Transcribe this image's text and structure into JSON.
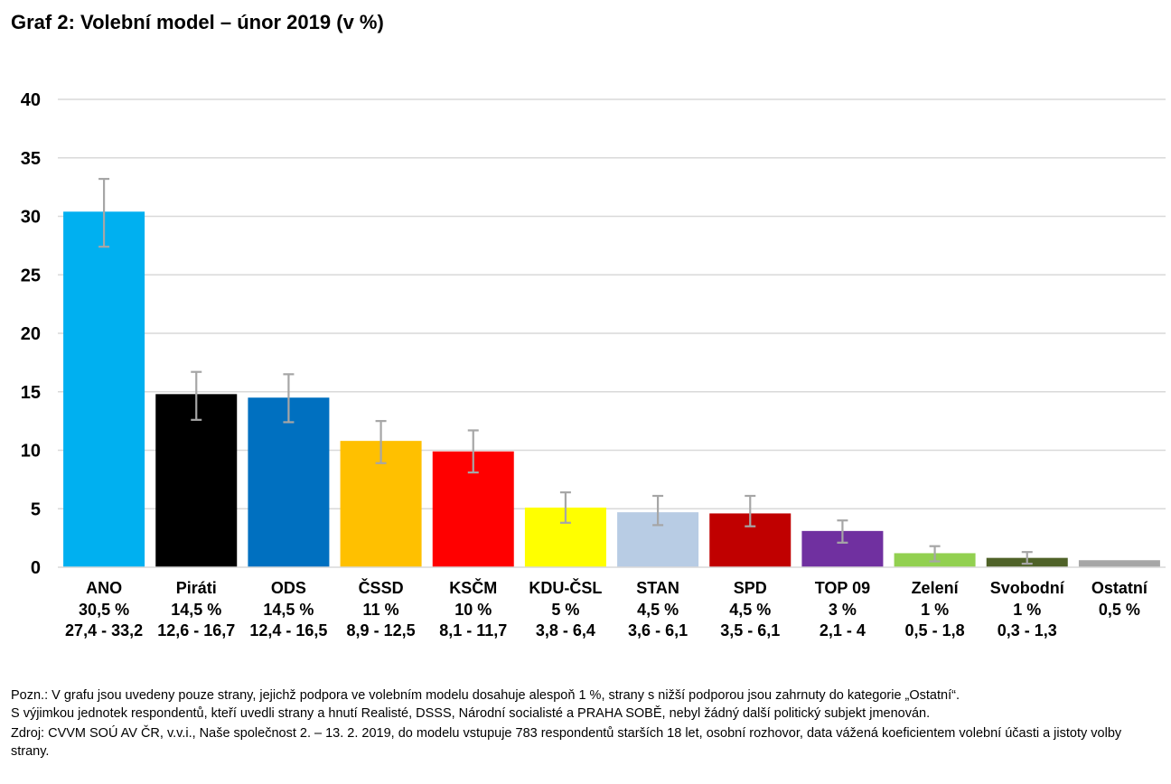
{
  "title": "Graf 2: Volební model – únor 2019 (v %)",
  "chart_data": {
    "type": "bar",
    "categories": [
      "ANO",
      "Piráti",
      "ODS",
      "ČSSD",
      "KSČM",
      "KDU-ČSL",
      "STAN",
      "SPD",
      "TOP 09",
      "Zelení",
      "Svobodní",
      "Ostatní"
    ],
    "values": [
      30.5,
      14.5,
      14.5,
      11,
      10,
      5,
      4.5,
      4.5,
      3,
      1,
      1,
      0.5
    ],
    "bar_heights": [
      30.4,
      14.8,
      14.5,
      10.8,
      9.9,
      5.1,
      4.7,
      4.6,
      3.1,
      1.2,
      0.8,
      0.6
    ],
    "value_labels": [
      "30,5 %",
      "14,5 %",
      "14,5 %",
      "11 %",
      "10 %",
      "5 %",
      "4,5 %",
      "4,5 %",
      "3 %",
      "1 %",
      "1 %",
      "0,5 %"
    ],
    "range_labels": [
      "27,4 - 33,2",
      "12,6 - 16,7",
      "12,4 - 16,5",
      "8,9 - 12,5",
      "8,1 - 11,7",
      "3,8 - 6,4",
      "3,6 - 6,1",
      "3,5 - 6,1",
      "2,1 - 4",
      "0,5 - 1,8",
      "0,3 - 1,3",
      ""
    ],
    "error_low": [
      27.4,
      12.6,
      12.4,
      8.9,
      8.1,
      3.8,
      3.6,
      3.5,
      2.1,
      0.5,
      0.3,
      null
    ],
    "error_high": [
      33.2,
      16.7,
      16.5,
      12.5,
      11.7,
      6.4,
      6.1,
      6.1,
      4,
      1.8,
      1.3,
      null
    ],
    "colors": [
      "#00b0f0",
      "#000000",
      "#0070c0",
      "#ffc000",
      "#ff0000",
      "#ffff00",
      "#b8cce4",
      "#c00000",
      "#7030a0",
      "#92d050",
      "#4f6228",
      "#a6a6a6"
    ],
    "yticks": [
      0,
      5,
      10,
      15,
      20,
      25,
      30,
      35,
      40
    ],
    "ylim": [
      0,
      40
    ],
    "grid": true,
    "gridline_color": "#d9d9d9",
    "errorbar_color": "#a6a6a6",
    "legend": "none"
  },
  "notes": {
    "line1": "Pozn.: V grafu jsou uvedeny pouze strany, jejichž podpora ve volebním modelu dosahuje alespoň 1 %, strany s nižší podporou jsou zahrnuty do kategorie „Ostatní“.",
    "line2": "S výjimkou jednotek respondentů, kteří uvedli strany a hnutí Realisté, DSSS, Národní socialisté a PRAHA SOBĚ, nebyl žádný další politický subjekt jmenován.",
    "source": "Zdroj: CVVM SOÚ AV ČR, v.v.i., Naše společnost 2. – 13. 2. 2019, do modelu vstupuje 783 respondentů starších 18 let, osobní rozhovor, data vážená koeficientem volební účasti a jistoty volby strany."
  }
}
